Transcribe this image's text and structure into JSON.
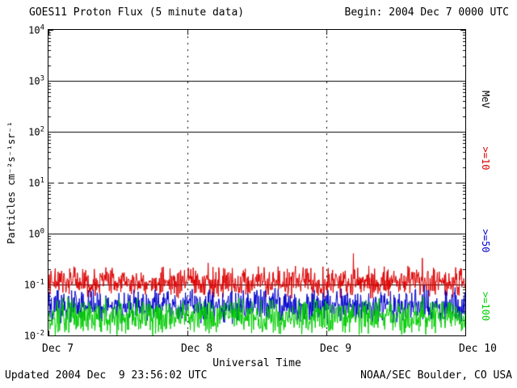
{
  "footer": {
    "updated": "Updated 2004 Dec  9 23:56:02 UTC",
    "credit": "NOAA/SEC Boulder, CO USA"
  },
  "chart_data": {
    "type": "line",
    "title": "GOES11 Proton Flux (5 minute data)",
    "begin_label": "Begin: 2004 Dec 7 0000 UTC",
    "xlabel": "Universal Time",
    "ylabel": "Particles cm⁻²s⁻¹sr⁻¹",
    "right_axis_label": "MeV",
    "y_log_range": [
      -2,
      4
    ],
    "x_range_days": 3,
    "points_per_day": 288,
    "xticks": [
      "Dec 7",
      "Dec 8",
      "Dec 9",
      "Dec 10"
    ],
    "yticks": [
      {
        "base": "10",
        "exp": "4"
      },
      {
        "base": "10",
        "exp": "3"
      },
      {
        "base": "10",
        "exp": "2"
      },
      {
        "base": "10",
        "exp": "1"
      },
      {
        "base": "10",
        "exp": "0"
      },
      {
        "base": "10",
        "exp": "-1"
      },
      {
        "base": "10",
        "exp": "-2"
      }
    ],
    "grid": {
      "h_solid_log": [
        3,
        2,
        0,
        -1
      ],
      "h_dashed_log": [
        1
      ],
      "v_dotted_days": [
        1,
        2
      ]
    },
    "seed": 20041209,
    "series": [
      {
        "name": ">=10",
        "energy": ">=10 MeV",
        "color": "#dd0000",
        "approx_flux": 0.11,
        "approx_range": [
          0.05,
          0.45
        ],
        "log10_mean": -0.95,
        "log10_sigma": 0.17,
        "spike_prob": 0.04,
        "spike_amp": 0.3
      },
      {
        "name": ">=50",
        "energy": ">=50 MeV",
        "color": "#0000cc",
        "approx_flux": 0.04,
        "approx_range": [
          0.015,
          0.13
        ],
        "log10_mean": -1.42,
        "log10_sigma": 0.19,
        "spike_prob": 0.03,
        "spike_amp": 0.25
      },
      {
        "name": ">=100",
        "energy": ">=100 MeV",
        "color": "#00cc00",
        "approx_flux": 0.022,
        "approx_range": [
          0.01,
          0.07
        ],
        "log10_mean": -1.63,
        "log10_sigma": 0.2,
        "spike_prob": 0.03,
        "spike_amp": 0.15
      }
    ]
  }
}
